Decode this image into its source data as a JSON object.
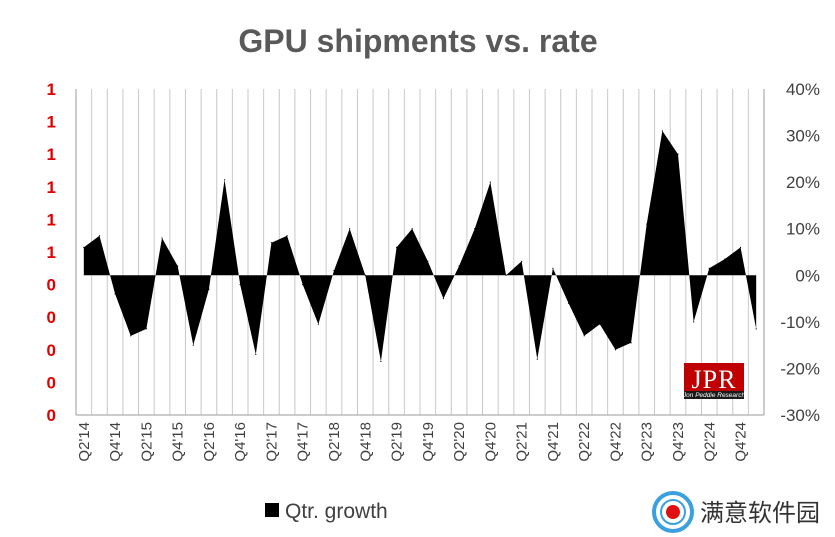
{
  "chart_data": {
    "type": "area",
    "title": "GPU shipments vs. rate",
    "left_axis_ticks": [
      "1",
      "1",
      "1",
      "1",
      "1",
      "1",
      "0",
      "0",
      "0",
      "0",
      "0"
    ],
    "right_axis_ticks": [
      "40%",
      "30%",
      "20%",
      "10%",
      "0%",
      "-10%",
      "-20%",
      "-30%"
    ],
    "ylim": [
      -30,
      40
    ],
    "grid": "vertical",
    "x": [
      "Q2'14",
      "Q3'14",
      "Q4'14",
      "Q1'15",
      "Q2'15",
      "Q3'15",
      "Q4'15",
      "Q1'16",
      "Q2'16",
      "Q3'16",
      "Q4'16",
      "Q1'17",
      "Q2'17",
      "Q3'17",
      "Q4'17",
      "Q1'18",
      "Q2'18",
      "Q3'18",
      "Q4'18",
      "Q1'19",
      "Q2'19",
      "Q3'19",
      "Q4'19",
      "Q1'20",
      "Q2'20",
      "Q3'20",
      "Q4'20",
      "Q1'21",
      "Q2'21",
      "Q3'21",
      "Q4'21",
      "Q1'22",
      "Q2'22",
      "Q3'22",
      "Q4'22",
      "Q1'23",
      "Q2'23",
      "Q3'23",
      "Q4'23",
      "Q1'24",
      "Q2'24",
      "Q3'24",
      "Q4'24",
      "Q1'25"
    ],
    "x_tick_labels": [
      "Q2'14",
      "Q4'14",
      "Q2'15",
      "Q4'15",
      "Q2'16",
      "Q4'16",
      "Q2'17",
      "Q4'17",
      "Q2'18",
      "Q4'18",
      "Q2'19",
      "Q4'19",
      "Q2'20",
      "Q4'20",
      "Q2'21",
      "Q4'21",
      "Q2'22",
      "Q4'22",
      "Q2'23",
      "Q4'23",
      "Q2'24",
      "Q4'24"
    ],
    "series": [
      {
        "name": "Qtr. growth",
        "color": "#000000",
        "values": [
          6,
          8.5,
          -4,
          -13,
          -11.5,
          8,
          2,
          -15,
          -3,
          20.5,
          -2,
          -17,
          7,
          8.5,
          -2,
          -10.5,
          1,
          10,
          0,
          -18.5,
          6,
          10,
          3,
          -5,
          2,
          10,
          20,
          0,
          3,
          -18,
          1.5,
          -6,
          -13,
          -10.5,
          -16,
          -14.5,
          11,
          31,
          26,
          -10,
          1.5,
          3.5,
          6,
          -11.5
        ]
      }
    ],
    "legend_position": "bottom-left"
  },
  "logo": {
    "text": "JPR",
    "subtext": "Jon Peddie Research"
  },
  "watermark": {
    "text": "满意软件园",
    "icon": "target-circle-icon"
  }
}
